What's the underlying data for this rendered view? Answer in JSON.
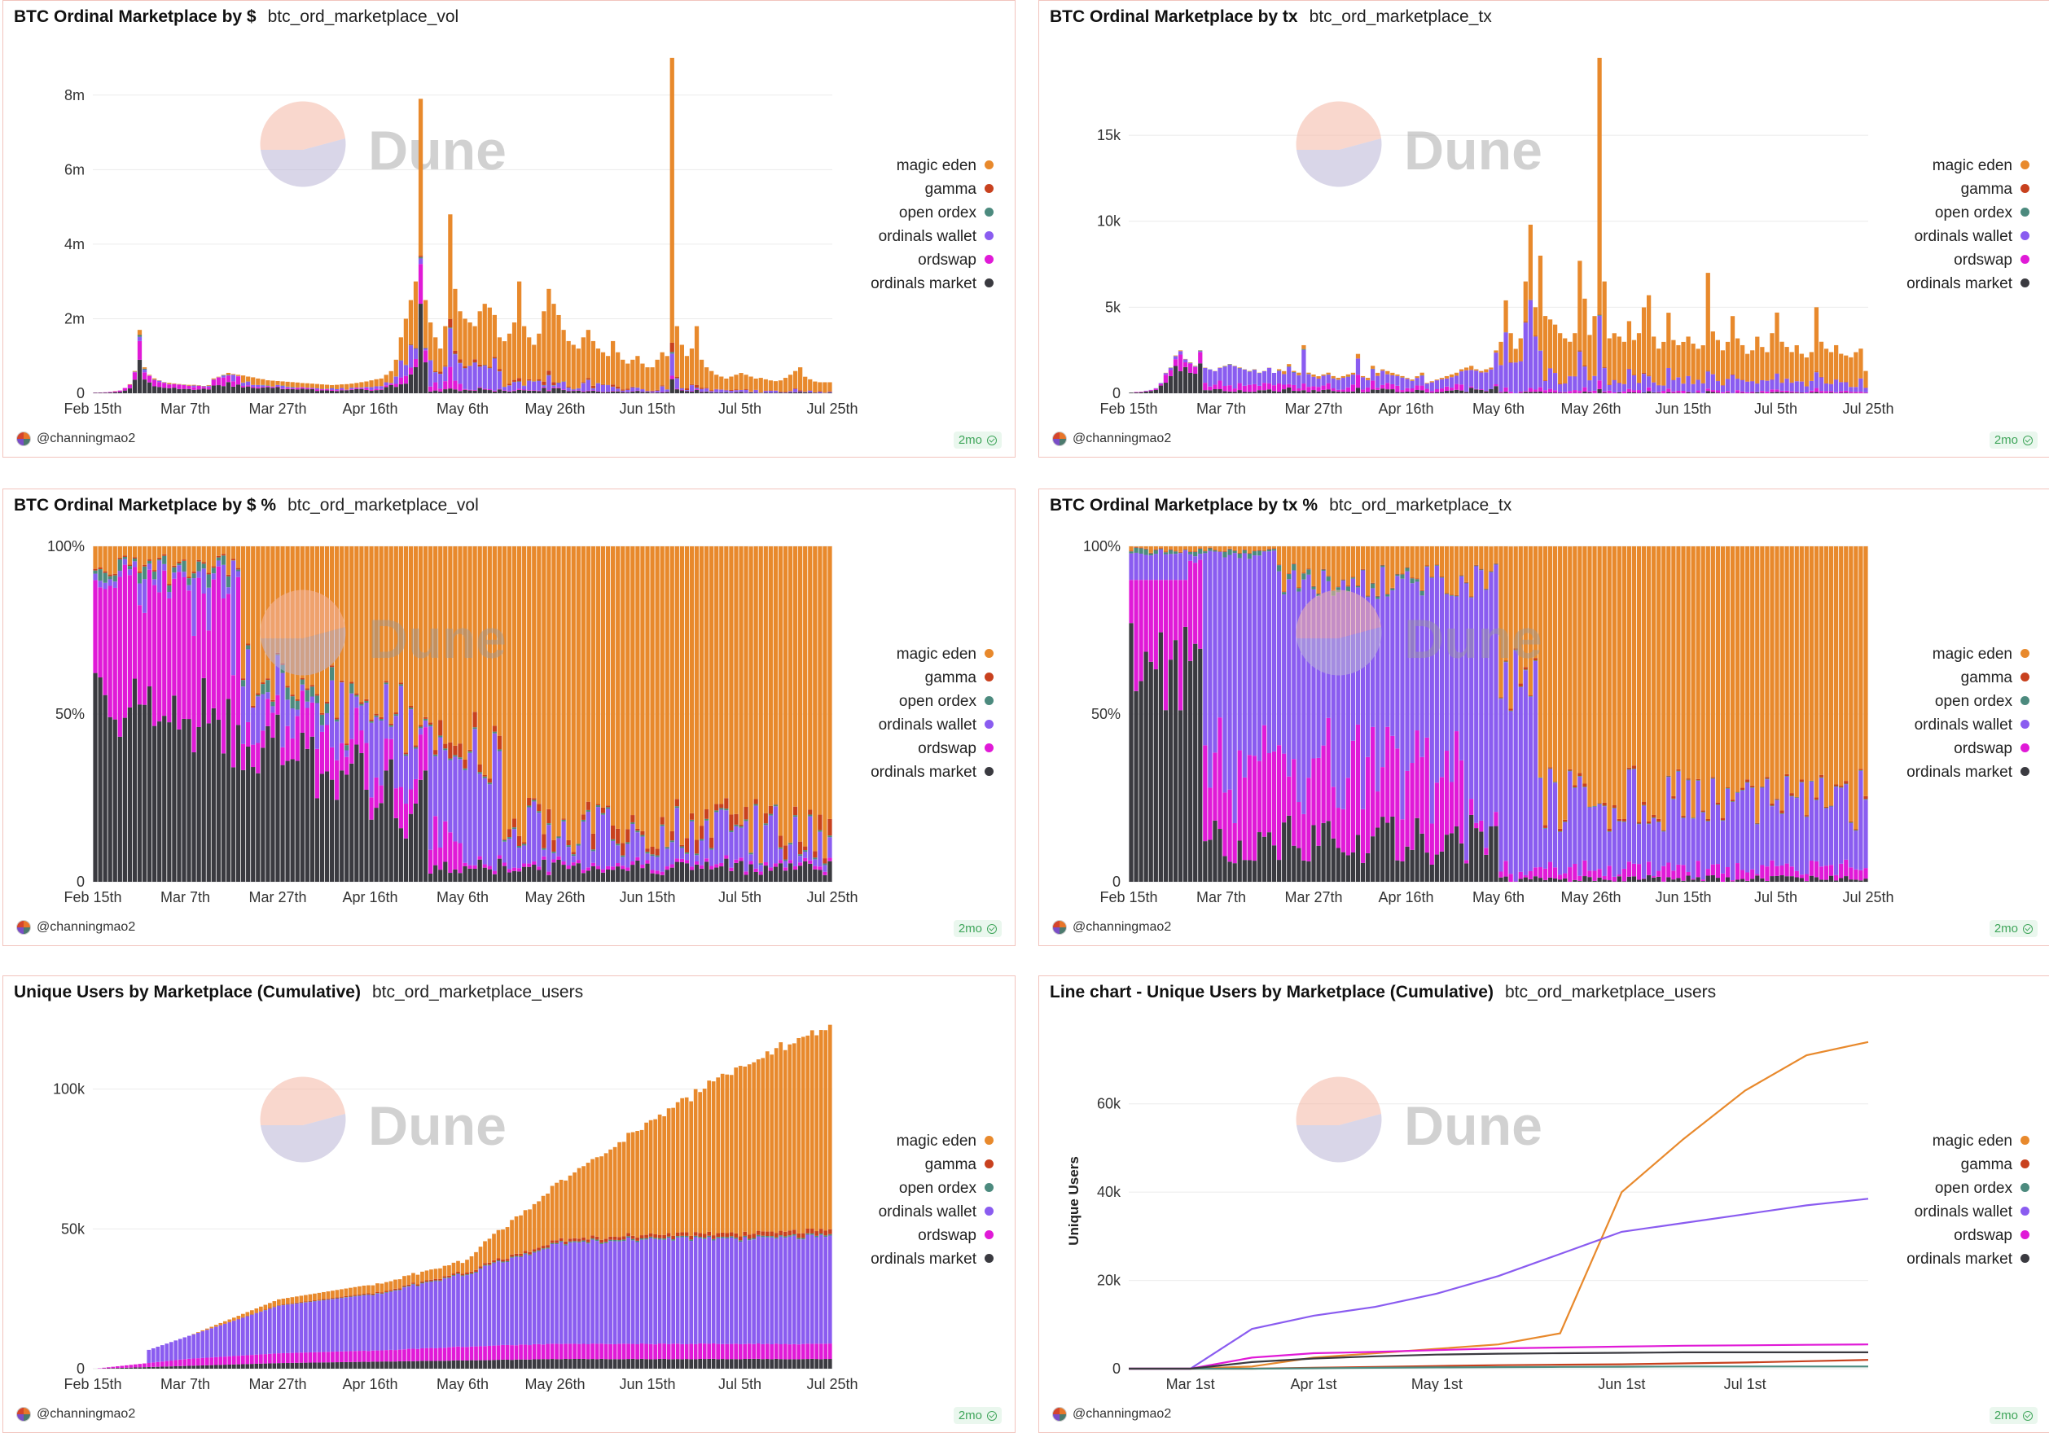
{
  "series_meta": [
    {
      "name": "magic eden",
      "color": "#e8892c"
    },
    {
      "name": "gamma",
      "color": "#c8411e"
    },
    {
      "name": "open ordex",
      "color": "#4c8a7e"
    },
    {
      "name": "ordinals wallet",
      "color": "#8a5cf0"
    },
    {
      "name": "ordswap",
      "color": "#e01ad7"
    },
    {
      "name": "ordinals market",
      "color": "#3a3a40"
    }
  ],
  "watermark": "Dune",
  "author": "@channingmao2",
  "badge": "2mo",
  "date_ticks": [
    "Feb 15th",
    "Mar 7th",
    "Mar 27th",
    "Apr 16th",
    "May 6th",
    "May 26th",
    "Jun 15th",
    "Jul 5th",
    "Jul 25th"
  ],
  "panels": [
    {
      "title": "BTC Ordinal Marketplace by $",
      "query": "btc_ord_marketplace_vol",
      "chart_data": {
        "type": "bar",
        "stacked": true,
        "x_ticks": [
          "Feb 15th",
          "Mar 7th",
          "Mar 27th",
          "Apr 16th",
          "May 6th",
          "May 26th",
          "Jun 15th",
          "Jul 5th",
          "Jul 25th"
        ],
        "y_ticks": [
          "0",
          "2m",
          "4m",
          "6m",
          "8m"
        ],
        "ylim": [
          0,
          9000000
        ],
        "totals_by_day": [
          20000,
          25000,
          30000,
          40000,
          60000,
          80000,
          150000,
          250000,
          600000,
          1700000,
          700000,
          500000,
          400000,
          350000,
          300000,
          280000,
          270000,
          250000,
          240000,
          230000,
          230000,
          220000,
          200000,
          220000,
          400000,
          450000,
          500000,
          550000,
          520000,
          500000,
          480000,
          450000,
          430000,
          400000,
          380000,
          350000,
          340000,
          330000,
          320000,
          310000,
          300000,
          290000,
          280000,
          270000,
          260000,
          250000,
          240000,
          230000,
          220000,
          230000,
          240000,
          250000,
          260000,
          280000,
          300000,
          320000,
          350000,
          380000,
          400000,
          500000,
          600000,
          900000,
          1500000,
          2000000,
          2500000,
          3000000,
          7900000,
          2500000,
          1900000,
          1500000,
          1200000,
          1800000,
          4800000,
          2800000,
          2200000,
          2000000,
          1900000,
          1800000,
          2200000,
          2400000,
          2300000,
          2100000,
          1500000,
          1400000,
          1600000,
          1900000,
          3000000,
          1800000,
          1500000,
          1300000,
          1600000,
          2200000,
          2800000,
          2400000,
          2100000,
          1700000,
          1400000,
          1300000,
          1200000,
          1500000,
          1700000,
          1400000,
          1200000,
          1100000,
          1000000,
          1400000,
          1100000,
          900000,
          800000,
          900000,
          1000000,
          800000,
          700000,
          700000,
          900000,
          1100000,
          1000000,
          9000000,
          1800000,
          1300000,
          1000000,
          1200000,
          1800000,
          900000,
          700000,
          600000,
          500000,
          450000,
          400000,
          450000,
          500000,
          550000,
          500000,
          450000,
          400000,
          420000,
          380000,
          350000,
          330000,
          350000,
          420000,
          500000,
          600000,
          700000,
          450000,
          380000,
          320000,
          300000,
          300000,
          300000
        ]
      }
    },
    {
      "title": "BTC Ordinal Marketplace by tx",
      "query": "btc_ord_marketplace_tx",
      "chart_data": {
        "type": "bar",
        "stacked": true,
        "x_ticks": [
          "Feb 15th",
          "Mar 7th",
          "Mar 27th",
          "Apr 16th",
          "May 6th",
          "May 26th",
          "Jun 15th",
          "Jul 5th",
          "Jul 25th"
        ],
        "y_ticks": [
          "0",
          "5k",
          "10k",
          "15k"
        ],
        "ylim": [
          0,
          19500
        ],
        "totals_by_day": [
          50,
          80,
          100,
          150,
          200,
          300,
          600,
          1200,
          1500,
          2200,
          2500,
          2000,
          1800,
          1600,
          2500,
          1500,
          1400,
          1300,
          1500,
          1600,
          1700,
          1600,
          1500,
          1400,
          1300,
          1400,
          1200,
          1300,
          1500,
          1200,
          1400,
          1300,
          1700,
          1300,
          1200,
          2800,
          1200,
          1100,
          1000,
          1100,
          1200,
          1000,
          900,
          1000,
          1100,
          1200,
          2300,
          1000,
          900,
          1600,
          1200,
          1400,
          1300,
          1200,
          1100,
          1000,
          900,
          800,
          1000,
          1200,
          600,
          700,
          800,
          900,
          1000,
          1100,
          1200,
          1400,
          1500,
          1600,
          1400,
          1300,
          1400,
          1500,
          2500,
          3000,
          5400,
          3500,
          2600,
          3200,
          6500,
          9800,
          5000,
          8000,
          4500,
          4300,
          4000,
          3500,
          3200,
          3000,
          3500,
          7700,
          5500,
          3400,
          4500,
          19500,
          6500,
          3200,
          3500,
          3300,
          3000,
          4200,
          3100,
          3500,
          5000,
          5700,
          3300,
          2600,
          3000,
          4700,
          3100,
          2800,
          3000,
          3300,
          2900,
          2600,
          2800,
          7000,
          3600,
          3100,
          2500,
          3000,
          4500,
          3200,
          2800,
          2300,
          2500,
          3300,
          2700,
          2400,
          3500,
          4700,
          3000,
          2700,
          2400,
          2800,
          2300,
          2100,
          2400,
          5000,
          3000,
          2600,
          2400,
          2800,
          2300,
          2200,
          2100,
          2400,
          2600,
          1300
        ]
      }
    },
    {
      "title": "BTC Ordinal Marketplace by $ %",
      "query": "btc_ord_marketplace_vol",
      "chart_data": {
        "type": "bar",
        "stacked": true,
        "normalized": true,
        "x_ticks": [
          "Feb 15th",
          "Mar 7th",
          "Mar 27th",
          "Apr 16th",
          "May 6th",
          "May 26th",
          "Jun 15th",
          "Jul 5th",
          "Jul 25th"
        ],
        "y_ticks": [
          "0",
          "50%",
          "100%"
        ],
        "ylim": [
          0,
          1
        ]
      }
    },
    {
      "title": "BTC Ordinal Marketplace by tx %",
      "query": "btc_ord_marketplace_tx",
      "chart_data": {
        "type": "bar",
        "stacked": true,
        "normalized": true,
        "x_ticks": [
          "Feb 15th",
          "Mar 7th",
          "Mar 27th",
          "Apr 16th",
          "May 6th",
          "May 26th",
          "Jun 15th",
          "Jul 5th",
          "Jul 25th"
        ],
        "y_ticks": [
          "0",
          "50%",
          "100%"
        ],
        "ylim": [
          0,
          1
        ]
      }
    },
    {
      "title": "Unique Users by Marketplace (Cumulative)",
      "query": "btc_ord_marketplace_users",
      "chart_data": {
        "type": "bar",
        "stacked": true,
        "x_ticks": [
          "Feb 15th",
          "Mar 7th",
          "Mar 27th",
          "Apr 16th",
          "May 6th",
          "May 26th",
          "Jun 15th",
          "Jul 5th",
          "Jul 25th"
        ],
        "y_ticks": [
          "0",
          "50k",
          "100k"
        ],
        "ylim": [
          0,
          120000
        ],
        "approx_values_at_ticks": {
          "magic eden": [
            0,
            0,
            2000,
            3000,
            4000,
            20000,
            40000,
            60000,
            75000
          ],
          "ordinals wallet": [
            0,
            8000,
            17000,
            20000,
            26000,
            36000,
            38000,
            38000,
            39000
          ],
          "ordswap": [
            0,
            2500,
            3500,
            4000,
            5000,
            5500,
            5500,
            5500,
            5500
          ],
          "ordinals market": [
            0,
            1000,
            2000,
            2500,
            3000,
            3500,
            3500,
            3500,
            3500
          ],
          "gamma": [
            0,
            0,
            200,
            400,
            600,
            1000,
            1200,
            1500,
            1800
          ],
          "open ordex": [
            0,
            0,
            100,
            200,
            300,
            400,
            500,
            500,
            500
          ]
        }
      }
    },
    {
      "title": "Line chart - Unique Users by Marketplace (Cumulative)",
      "query": "btc_ord_marketplace_users",
      "chart_data": {
        "type": "line",
        "x_ticks": [
          "Mar 1st",
          "Apr 1st",
          "May 1st",
          "Jun 1st",
          "Jul 1st"
        ],
        "y_ticks": [
          "0",
          "20k",
          "40k",
          "60k"
        ],
        "ylabel": "Unique Users",
        "ylim": [
          0,
          76000
        ],
        "x": [
          "Feb 15",
          "Mar 1",
          "Mar 15",
          "Apr 1",
          "Apr 15",
          "May 1",
          "May 15",
          "May 20",
          "Jun 1",
          "Jun 15",
          "Jul 1",
          "Jul 15",
          "Aug 1"
        ],
        "series": [
          {
            "name": "magic eden",
            "values": [
              0,
              0,
              500,
              2500,
              3500,
              4500,
              5500,
              8000,
              40000,
              52000,
              63000,
              71000,
              74000
            ]
          },
          {
            "name": "gamma",
            "values": [
              0,
              0,
              0,
              200,
              400,
              600,
              800,
              900,
              1000,
              1200,
              1400,
              1700,
              2000
            ]
          },
          {
            "name": "open ordex",
            "values": [
              0,
              0,
              0,
              100,
              200,
              300,
              350,
              400,
              450,
              500,
              500,
              500,
              500
            ]
          },
          {
            "name": "ordinals wallet",
            "values": [
              0,
              0,
              9000,
              12000,
              14000,
              17000,
              21000,
              26000,
              31000,
              33000,
              35000,
              37000,
              38500
            ]
          },
          {
            "name": "ordswap",
            "values": [
              0,
              0,
              2500,
              3500,
              3800,
              4200,
              4600,
              4800,
              5000,
              5200,
              5300,
              5400,
              5500
            ]
          },
          {
            "name": "ordinals market",
            "values": [
              0,
              0,
              1500,
              2300,
              2800,
              3200,
              3400,
              3500,
              3600,
              3700,
              3700,
              3700,
              3700
            ]
          }
        ]
      }
    }
  ]
}
